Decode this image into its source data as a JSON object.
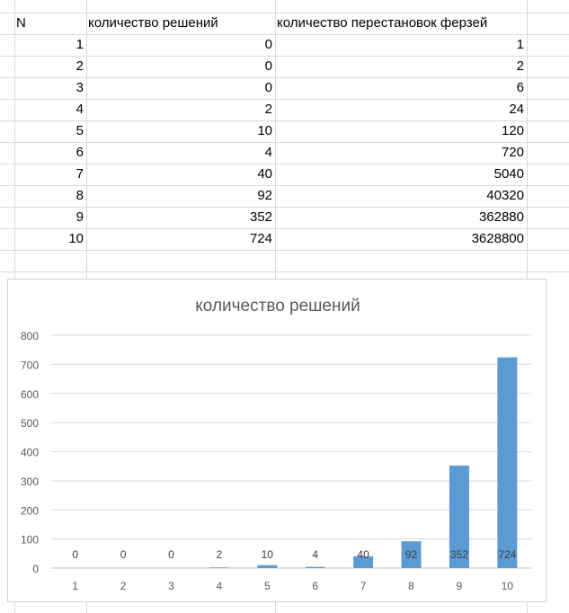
{
  "sheet": {
    "headers": [
      "N",
      "количество решений",
      "количество перестановок ферзей"
    ],
    "rows": [
      [
        "1",
        "0",
        "1"
      ],
      [
        "2",
        "0",
        "2"
      ],
      [
        "3",
        "0",
        "6"
      ],
      [
        "4",
        "2",
        "24"
      ],
      [
        "5",
        "10",
        "120"
      ],
      [
        "6",
        "4",
        "720"
      ],
      [
        "7",
        "40",
        "5040"
      ],
      [
        "8",
        "92",
        "40320"
      ],
      [
        "9",
        "352",
        "362880"
      ],
      [
        "10",
        "724",
        "3628800"
      ]
    ]
  },
  "chart_data": {
    "type": "bar",
    "title": "количество решений",
    "categories": [
      "1",
      "2",
      "3",
      "4",
      "5",
      "6",
      "7",
      "8",
      "9",
      "10"
    ],
    "values": [
      0,
      0,
      0,
      2,
      10,
      4,
      40,
      92,
      352,
      724
    ],
    "data_labels": [
      "0",
      "0",
      "0",
      "2",
      "10",
      "4",
      "40",
      "92",
      "352",
      "724"
    ],
    "ylim": [
      0,
      800
    ],
    "yticks": [
      "0",
      "100",
      "200",
      "300",
      "400",
      "500",
      "600",
      "700",
      "800"
    ],
    "grid": true,
    "bar_color": "#5b9bd5"
  }
}
